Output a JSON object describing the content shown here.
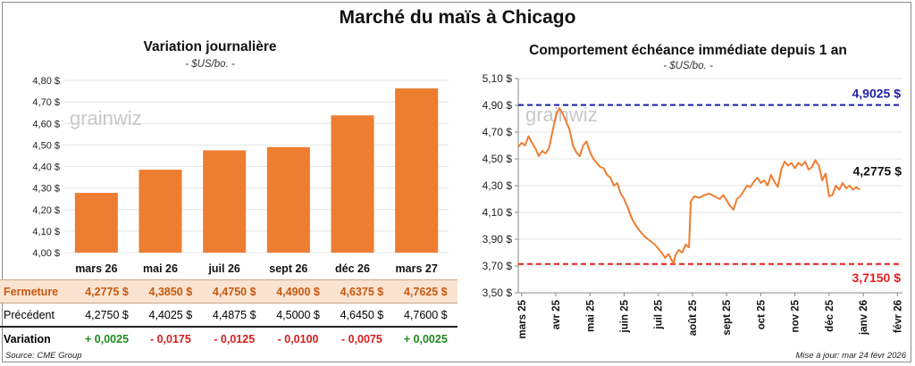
{
  "title": "Marché du maïs à Chicago",
  "left_panel": {
    "title": "Variation journalière",
    "unit": "- $US/bo. -",
    "watermark": "grainwiz"
  },
  "right_panel": {
    "title": "Comportement  échéance immédiate depuis 1 an",
    "unit": "- $US/bo. -",
    "watermark": "grainwiz"
  },
  "chart_data": [
    {
      "type": "bar",
      "categories": [
        "mars 26",
        "mai 26",
        "juil 26",
        "sept 26",
        "déc 26",
        "mars 27"
      ],
      "values": [
        4.2775,
        4.385,
        4.475,
        4.49,
        4.6375,
        4.7625
      ],
      "ylim": [
        4.0,
        4.8
      ],
      "yticks": [
        "4,00 $",
        "4,10 $",
        "4,20 $",
        "4,30 $",
        "4,40 $",
        "4,50 $",
        "4,60 $",
        "4,70 $",
        "4,80 $"
      ],
      "color": "#ed7d31"
    },
    {
      "type": "line",
      "xlabels": [
        "mars 25",
        "avr 25",
        "mai 25",
        "juin 25",
        "juil 25",
        "août 25",
        "sept 25",
        "oct 25",
        "nov 25",
        "déc 25",
        "janv 26",
        "févr 26"
      ],
      "yticks": [
        "3,50 $",
        "3,70 $",
        "3,90 $",
        "4,10 $",
        "4,30 $",
        "4,50 $",
        "4,70 $",
        "4,90 $",
        "5,10 $"
      ],
      "ylim": [
        3.5,
        5.1
      ],
      "line_color": "#ed7d31",
      "high": {
        "value": 4.9025,
        "label": "4,9025 $",
        "color": "#1f1fa8"
      },
      "low": {
        "value": 3.715,
        "label": "3,7150 $",
        "color": "#e02020"
      },
      "last": {
        "value": 4.2775,
        "label": "4,2775 $"
      },
      "series": [
        {
          "x": 0,
          "y": 4.59
        },
        {
          "x": 0.1,
          "y": 4.62
        },
        {
          "x": 0.2,
          "y": 4.6
        },
        {
          "x": 0.3,
          "y": 4.67
        },
        {
          "x": 0.4,
          "y": 4.62
        },
        {
          "x": 0.5,
          "y": 4.58
        },
        {
          "x": 0.6,
          "y": 4.52
        },
        {
          "x": 0.7,
          "y": 4.56
        },
        {
          "x": 0.8,
          "y": 4.54
        },
        {
          "x": 0.9,
          "y": 4.58
        },
        {
          "x": 1.0,
          "y": 4.7
        },
        {
          "x": 1.1,
          "y": 4.82
        },
        {
          "x": 1.2,
          "y": 4.88
        },
        {
          "x": 1.3,
          "y": 4.84
        },
        {
          "x": 1.4,
          "y": 4.78
        },
        {
          "x": 1.5,
          "y": 4.72
        },
        {
          "x": 1.6,
          "y": 4.6
        },
        {
          "x": 1.7,
          "y": 4.55
        },
        {
          "x": 1.8,
          "y": 4.52
        },
        {
          "x": 1.9,
          "y": 4.6
        },
        {
          "x": 2.0,
          "y": 4.63
        },
        {
          "x": 2.1,
          "y": 4.55
        },
        {
          "x": 2.2,
          "y": 4.5
        },
        {
          "x": 2.3,
          "y": 4.47
        },
        {
          "x": 2.4,
          "y": 4.44
        },
        {
          "x": 2.5,
          "y": 4.43
        },
        {
          "x": 2.6,
          "y": 4.38
        },
        {
          "x": 2.7,
          "y": 4.36
        },
        {
          "x": 2.8,
          "y": 4.3
        },
        {
          "x": 2.9,
          "y": 4.32
        },
        {
          "x": 3.0,
          "y": 4.24
        },
        {
          "x": 3.1,
          "y": 4.2
        },
        {
          "x": 3.2,
          "y": 4.14
        },
        {
          "x": 3.3,
          "y": 4.07
        },
        {
          "x": 3.4,
          "y": 4.02
        },
        {
          "x": 3.5,
          "y": 3.98
        },
        {
          "x": 3.6,
          "y": 3.95
        },
        {
          "x": 3.7,
          "y": 3.92
        },
        {
          "x": 3.8,
          "y": 3.9
        },
        {
          "x": 3.9,
          "y": 3.88
        },
        {
          "x": 4.0,
          "y": 3.86
        },
        {
          "x": 4.1,
          "y": 3.83
        },
        {
          "x": 4.2,
          "y": 3.8
        },
        {
          "x": 4.3,
          "y": 3.76
        },
        {
          "x": 4.4,
          "y": 3.79
        },
        {
          "x": 4.5,
          "y": 3.74
        },
        {
          "x": 4.55,
          "y": 3.72
        },
        {
          "x": 4.6,
          "y": 3.78
        },
        {
          "x": 4.7,
          "y": 3.82
        },
        {
          "x": 4.8,
          "y": 3.8
        },
        {
          "x": 4.9,
          "y": 3.86
        },
        {
          "x": 5.0,
          "y": 3.84
        },
        {
          "x": 5.05,
          "y": 4.18
        },
        {
          "x": 5.15,
          "y": 4.22
        },
        {
          "x": 5.3,
          "y": 4.21
        },
        {
          "x": 5.45,
          "y": 4.23
        },
        {
          "x": 5.6,
          "y": 4.24
        },
        {
          "x": 5.75,
          "y": 4.22
        },
        {
          "x": 5.9,
          "y": 4.2
        },
        {
          "x": 6.0,
          "y": 4.23
        },
        {
          "x": 6.1,
          "y": 4.19
        },
        {
          "x": 6.2,
          "y": 4.15
        },
        {
          "x": 6.3,
          "y": 4.12
        },
        {
          "x": 6.4,
          "y": 4.2
        },
        {
          "x": 6.5,
          "y": 4.22
        },
        {
          "x": 6.6,
          "y": 4.26
        },
        {
          "x": 6.7,
          "y": 4.3
        },
        {
          "x": 6.8,
          "y": 4.29
        },
        {
          "x": 6.9,
          "y": 4.33
        },
        {
          "x": 7.0,
          "y": 4.36
        },
        {
          "x": 7.1,
          "y": 4.32
        },
        {
          "x": 7.2,
          "y": 4.34
        },
        {
          "x": 7.3,
          "y": 4.3
        },
        {
          "x": 7.4,
          "y": 4.38
        },
        {
          "x": 7.5,
          "y": 4.33
        },
        {
          "x": 7.6,
          "y": 4.29
        },
        {
          "x": 7.7,
          "y": 4.42
        },
        {
          "x": 7.8,
          "y": 4.48
        },
        {
          "x": 7.9,
          "y": 4.45
        },
        {
          "x": 8.0,
          "y": 4.47
        },
        {
          "x": 8.1,
          "y": 4.43
        },
        {
          "x": 8.2,
          "y": 4.47
        },
        {
          "x": 8.3,
          "y": 4.45
        },
        {
          "x": 8.4,
          "y": 4.48
        },
        {
          "x": 8.5,
          "y": 4.42
        },
        {
          "x": 8.6,
          "y": 4.44
        },
        {
          "x": 8.7,
          "y": 4.49
        },
        {
          "x": 8.8,
          "y": 4.45
        },
        {
          "x": 8.9,
          "y": 4.34
        },
        {
          "x": 9.0,
          "y": 4.39
        },
        {
          "x": 9.1,
          "y": 4.22
        },
        {
          "x": 9.2,
          "y": 4.23
        },
        {
          "x": 9.3,
          "y": 4.3
        },
        {
          "x": 9.4,
          "y": 4.27
        },
        {
          "x": 9.5,
          "y": 4.32
        },
        {
          "x": 9.6,
          "y": 4.28
        },
        {
          "x": 9.7,
          "y": 4.3
        },
        {
          "x": 9.8,
          "y": 4.27
        },
        {
          "x": 9.9,
          "y": 4.29
        },
        {
          "x": 10.0,
          "y": 4.27
        }
      ]
    }
  ],
  "table": {
    "rows": [
      {
        "label": "Fermeture",
        "values": [
          "4,2775  $",
          "4,3850  $",
          "4,4750  $",
          "4,4900  $",
          "4,6375  $",
          "4,7625  $"
        ]
      },
      {
        "label": "Précédent",
        "values": [
          "4,2750  $",
          "4,4025  $",
          "4,4875  $",
          "4,5000  $",
          "4,6450  $",
          "4,7600  $"
        ]
      },
      {
        "label": "Variation",
        "values": [
          "+ 0,0025",
          "- 0,0175",
          "- 0,0125",
          "- 0,0100",
          "- 0,0075",
          "+ 0,0025"
        ],
        "signs": [
          "pos",
          "neg",
          "neg",
          "neg",
          "neg",
          "pos"
        ]
      }
    ]
  },
  "footer": {
    "source": "Source: CME Group",
    "updated": "Mise à jour: mar 24 févr 2026"
  }
}
